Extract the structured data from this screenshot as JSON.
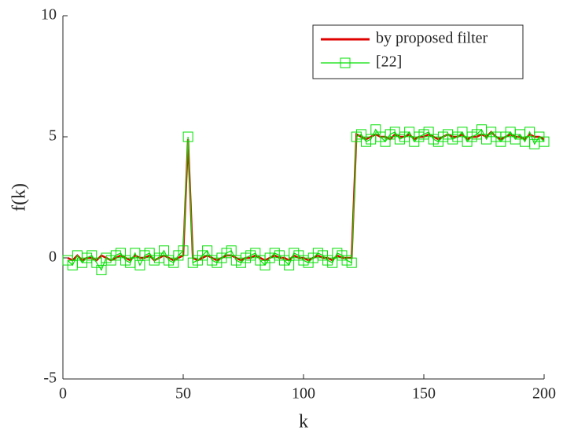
{
  "chart_data": {
    "type": "line",
    "xlabel": "k",
    "ylabel": "f(k)",
    "x": [
      2,
      4,
      6,
      8,
      10,
      12,
      14,
      16,
      18,
      20,
      22,
      24,
      26,
      28,
      30,
      32,
      34,
      36,
      38,
      40,
      42,
      44,
      46,
      48,
      50,
      52,
      54,
      56,
      58,
      60,
      62,
      64,
      66,
      68,
      70,
      72,
      74,
      76,
      78,
      80,
      82,
      84,
      86,
      88,
      90,
      92,
      94,
      96,
      98,
      100,
      102,
      104,
      106,
      108,
      110,
      112,
      114,
      116,
      118,
      120,
      122,
      124,
      126,
      128,
      130,
      132,
      134,
      136,
      138,
      140,
      142,
      144,
      146,
      148,
      150,
      152,
      154,
      156,
      158,
      160,
      162,
      164,
      166,
      168,
      170,
      172,
      174,
      176,
      178,
      180,
      182,
      184,
      186,
      188,
      190,
      192,
      194,
      196,
      198,
      200
    ],
    "series": [
      {
        "name": "by proposed filter",
        "color": "#e00000",
        "marker": "none",
        "values": [
          0.0,
          -0.1,
          0.1,
          -0.1,
          0.0,
          0.0,
          -0.1,
          0.1,
          0.0,
          -0.1,
          0.0,
          0.1,
          0.0,
          -0.1,
          0.1,
          0.0,
          0.0,
          0.1,
          -0.1,
          0.0,
          0.1,
          0.0,
          -0.1,
          0.0,
          0.1,
          4.9,
          0.0,
          -0.1,
          0.0,
          0.1,
          0.0,
          -0.1,
          0.0,
          0.1,
          0.1,
          0.0,
          -0.1,
          0.0,
          0.0,
          0.1,
          0.0,
          -0.1,
          0.0,
          0.1,
          0.0,
          0.0,
          -0.1,
          0.1,
          0.0,
          0.0,
          -0.1,
          0.0,
          0.1,
          0.0,
          0.0,
          -0.1,
          0.1,
          0.0,
          0.0,
          0.0,
          5.1,
          5.0,
          4.9,
          5.0,
          5.1,
          5.0,
          5.0,
          4.9,
          5.1,
          5.0,
          5.0,
          5.1,
          4.9,
          5.0,
          5.0,
          5.1,
          5.0,
          4.9,
          5.0,
          5.1,
          5.0,
          5.0,
          5.1,
          4.9,
          5.0,
          5.0,
          5.1,
          5.0,
          5.2,
          5.0,
          4.9,
          5.0,
          5.1,
          5.0,
          5.0,
          4.9,
          5.1,
          5.0,
          5.0,
          4.9
        ]
      },
      {
        "name": "[22]",
        "color": "#00e000",
        "marker": "square",
        "values": [
          -0.1,
          -0.3,
          0.1,
          -0.2,
          0.0,
          0.1,
          -0.2,
          -0.5,
          0.0,
          -0.1,
          0.1,
          0.2,
          -0.1,
          -0.2,
          0.2,
          -0.3,
          0.1,
          0.2,
          -0.1,
          0.0,
          0.3,
          -0.1,
          -0.2,
          0.1,
          0.3,
          5.0,
          -0.2,
          -0.1,
          0.1,
          0.3,
          -0.1,
          -0.2,
          0.0,
          0.2,
          0.3,
          -0.1,
          -0.2,
          0.0,
          0.1,
          0.2,
          -0.1,
          -0.3,
          0.0,
          0.2,
          0.1,
          -0.1,
          -0.3,
          0.2,
          0.1,
          -0.1,
          -0.2,
          0.0,
          0.2,
          0.1,
          -0.1,
          -0.2,
          0.2,
          0.1,
          -0.1,
          -0.2,
          5.0,
          5.1,
          4.8,
          4.9,
          5.3,
          5.0,
          4.8,
          5.1,
          5.2,
          4.9,
          5.0,
          5.2,
          4.8,
          5.0,
          5.1,
          5.2,
          4.9,
          4.8,
          5.0,
          5.1,
          4.9,
          5.0,
          5.2,
          4.8,
          5.0,
          5.1,
          5.3,
          4.9,
          5.2,
          5.0,
          4.8,
          5.0,
          5.2,
          4.9,
          5.1,
          4.8,
          5.2,
          4.7,
          5.0,
          4.8
        ]
      }
    ],
    "xlim": [
      0,
      200
    ],
    "xticks": [
      0,
      50,
      100,
      150,
      200
    ],
    "ylim": [
      -5,
      10
    ],
    "yticks": [
      -5,
      0,
      5,
      10
    ],
    "legend": "upper right"
  }
}
